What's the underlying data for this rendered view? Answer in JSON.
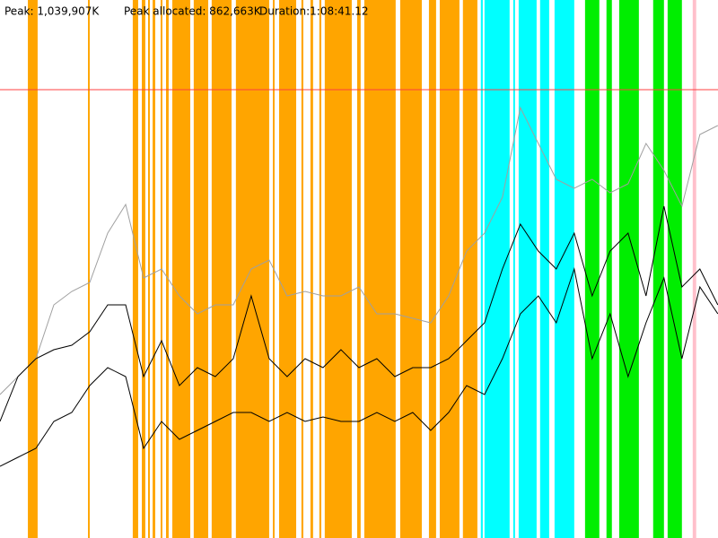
{
  "chart_data": {
    "type": "line",
    "stats": [
      "Peak: 1,039,907K",
      "Peak allocated: 862,663K",
      "Duration:1:08:41.12"
    ],
    "peak": 1039907,
    "peak_color": "#ff4040",
    "xlim": [
      0,
      4121.12
    ],
    "ylim": [
      0,
      1247888
    ],
    "x": [
      0,
      103,
      206,
      309,
      412,
      515,
      618,
      721,
      824,
      927,
      1030,
      1133,
      1236,
      1339,
      1442,
      1545,
      1648,
      1751,
      1854,
      1957,
      2060,
      2163,
      2266,
      2369,
      2472,
      2575,
      2678,
      2781,
      2884,
      2987,
      3090,
      3193,
      3296,
      3399,
      3502,
      3605,
      3708,
      3811,
      3914,
      4017,
      4120
    ],
    "series": [
      {
        "color": "#a0a0a0",
        "values": [
          332800,
          374400,
          416000,
          540800,
          572000,
          592800,
          707200,
          773760,
          603200,
          624000,
          561600,
          520000,
          540800,
          540800,
          624000,
          644800,
          561600,
          572000,
          561600,
          561600,
          582400,
          520000,
          520000,
          509600,
          499200,
          561600,
          665600,
          707200,
          790400,
          998400,
          915200,
          832000,
          811200,
          832000,
          800800,
          821600,
          915200,
          852800,
          769600,
          936000,
          956800
        ]
      },
      {
        "color": "#000000",
        "values": [
          270400,
          374400,
          416000,
          436800,
          447200,
          478400,
          540800,
          540800,
          374400,
          457600,
          353600,
          395200,
          374400,
          416000,
          561600,
          416000,
          374400,
          416000,
          395200,
          436800,
          395200,
          416000,
          374400,
          395200,
          395200,
          416000,
          457600,
          499200,
          624000,
          728000,
          665600,
          624000,
          707200,
          561600,
          665600,
          707200,
          561600,
          769600,
          582400,
          624000,
          540800
        ]
      },
      {
        "color": "#000000",
        "values": [
          166400,
          187200,
          208000,
          270400,
          291200,
          353600,
          395200,
          374400,
          208000,
          270400,
          228800,
          249600,
          270400,
          291200,
          291200,
          270400,
          291200,
          270400,
          280800,
          270400,
          270400,
          291200,
          270400,
          291200,
          249600,
          291200,
          353600,
          332800,
          416000,
          520000,
          561600,
          499200,
          624000,
          416000,
          520000,
          374400,
          499200,
          603200,
          416000,
          582400,
          520000
        ]
      }
    ],
    "markers": [
      {
        "color": "#ffa500",
        "ranges": [
          [
            160,
            216
          ],
          [
            505,
            515
          ],
          [
            762,
            793
          ],
          [
            814,
            834
          ],
          [
            850,
            860
          ],
          [
            876,
            891
          ],
          [
            922,
            932
          ],
          [
            953,
            968
          ],
          [
            989,
            1092
          ],
          [
            1112,
            1195
          ],
          [
            1215,
            1329
          ],
          [
            1354,
            1545
          ],
          [
            1566,
            1576
          ],
          [
            1602,
            1700
          ],
          [
            1730,
            1741
          ],
          [
            1782,
            1797
          ],
          [
            1833,
            1844
          ],
          [
            1864,
            2019
          ],
          [
            2050,
            2070
          ],
          [
            2091,
            2271
          ],
          [
            2297,
            2421
          ],
          [
            2462,
            2503
          ],
          [
            2524,
            2637
          ],
          [
            2657,
            2740
          ]
        ]
      },
      {
        "color": "#00ffff",
        "ranges": [
          [
            2760,
            2771
          ],
          [
            2781,
            2925
          ],
          [
            2946,
            2956
          ],
          [
            2977,
            3080
          ],
          [
            3100,
            3152
          ],
          [
            3183,
            3296
          ]
        ]
      },
      {
        "color": "#00ee00",
        "ranges": [
          [
            3358,
            3440
          ],
          [
            3481,
            3512
          ],
          [
            3554,
            3667
          ],
          [
            3749,
            3811
          ],
          [
            3832,
            3914
          ]
        ]
      },
      {
        "color": "#ffc0cb",
        "ranges": [
          [
            3976,
            3996
          ]
        ]
      }
    ]
  }
}
